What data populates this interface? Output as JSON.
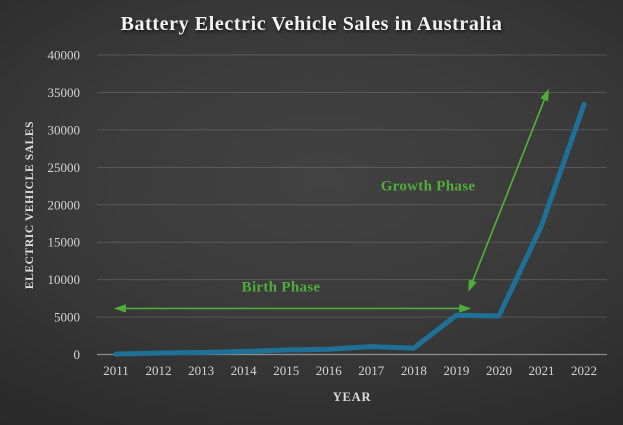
{
  "chart_title": "Battery Electric Vehicle Sales in Australia",
  "colors": {
    "background_center": "#424242",
    "background_edge": "#1e1e1e",
    "title_text": "#f2f2f2",
    "tick_text": "#d4d4d4",
    "line": "#1f7097",
    "annotation_green": "#4fae3a",
    "gridline": "rgba(255,255,255,0.15)"
  },
  "chart_data": {
    "type": "line",
    "title": "Battery Electric Vehicle Sales in Australia",
    "xlabel": "YEAR",
    "ylabel": "ELECTRIC VEHICLE SALES",
    "categories": [
      "2011",
      "2012",
      "2013",
      "2014",
      "2015",
      "2016",
      "2017",
      "2018",
      "2019",
      "2020",
      "2021",
      "2022"
    ],
    "values": [
      50,
      200,
      270,
      400,
      600,
      700,
      1050,
      850,
      5250,
      5150,
      17200,
      33400
    ],
    "ylim": [
      0,
      40000
    ],
    "ytick_step": 5000,
    "yticks": [
      0,
      5000,
      10000,
      15000,
      20000,
      25000,
      30000,
      35000,
      40000
    ],
    "grid": true,
    "legend": "none",
    "line_color": "#1f7097",
    "annotation_color": "#4fae3a",
    "annotations": [
      {
        "id": "birth-phase",
        "label": "Birth Phase",
        "style": "double-headed-arrow",
        "from": {
          "year": 2010.95,
          "value": 6150
        },
        "to": {
          "year": 2019.35,
          "value": 6150
        }
      },
      {
        "id": "growth-phase",
        "label": "Growth Phase",
        "style": "double-headed-arrow",
        "from": {
          "year": 2019.28,
          "value": 8350
        },
        "to": {
          "year": 2021.17,
          "value": 35500
        }
      }
    ]
  }
}
